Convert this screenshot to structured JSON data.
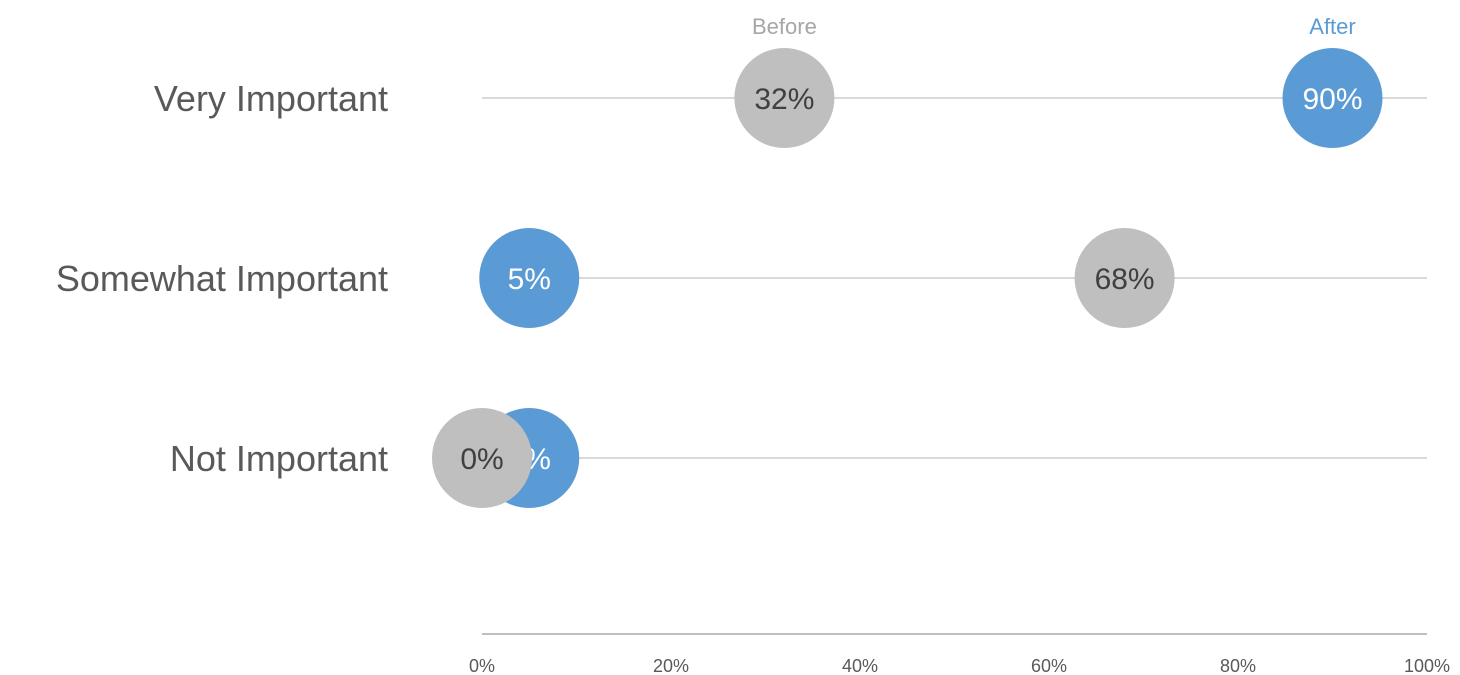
{
  "chart_data": {
    "type": "scatter",
    "title": "",
    "xlabel": "",
    "ylabel": "",
    "xlim": [
      0,
      100
    ],
    "x_ticks": [
      "0%",
      "20%",
      "40%",
      "60%",
      "80%",
      "100%"
    ],
    "categories": [
      "Very Important",
      "Somewhat Important",
      "Not Important"
    ],
    "grid": true,
    "series": [
      {
        "name": "Before",
        "color": "#bfbfbf",
        "label_color": "#404040",
        "values": [
          32,
          68,
          0
        ],
        "labels": [
          "32%",
          "68%",
          "0%"
        ]
      },
      {
        "name": "After",
        "color": "#5b9bd5",
        "label_color": "#ffffff",
        "values": [
          90,
          5,
          5
        ],
        "labels": [
          "90%",
          "5%",
          "5%"
        ]
      }
    ],
    "series_label_colors": {
      "Before": "#a6a6a6",
      "After": "#5b9bd5"
    },
    "gridline_color": "#d9d9d9"
  }
}
